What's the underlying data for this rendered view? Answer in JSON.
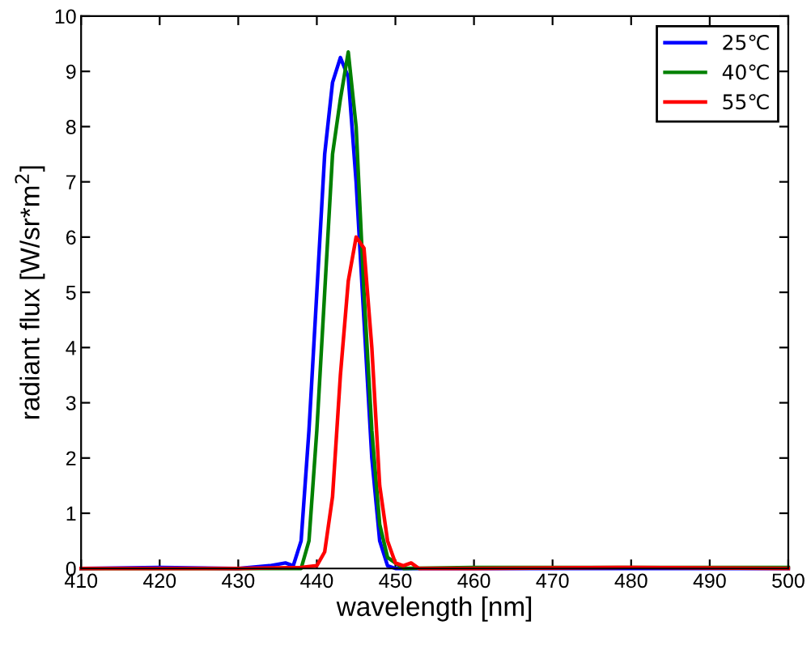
{
  "chart_data": {
    "type": "line",
    "xlabel": "wavelength [nm]",
    "ylabel": "radiant flux [W/sr*m$^{2}$]",
    "xlim": [
      410,
      500
    ],
    "xticks": [
      410,
      420,
      430,
      440,
      450,
      460,
      470,
      480,
      490,
      500
    ],
    "ylim": [
      0,
      10
    ],
    "yticks": [
      0,
      1,
      2,
      3,
      4,
      5,
      6,
      7,
      8,
      9,
      10
    ],
    "grid": false,
    "legend": "top right",
    "marker": "none",
    "line_style": "solid",
    "series": [
      {
        "name": "25℃",
        "color": "#0000ff",
        "x": [
          410,
          420,
          430,
          434,
          436,
          437,
          438,
          439,
          440,
          441,
          442,
          443,
          444,
          445,
          446,
          447,
          448,
          449,
          450,
          460,
          480,
          500
        ],
        "values": [
          0,
          0.02,
          0,
          0.05,
          0.1,
          0.05,
          0.5,
          2.5,
          5,
          7.5,
          8.8,
          9.25,
          8.9,
          7,
          4.5,
          2,
          0.5,
          0.05,
          0,
          0,
          0,
          0
        ]
      },
      {
        "name": "40℃",
        "color": "#008000",
        "x": [
          410,
          430,
          438,
          439,
          440,
          441,
          442,
          443,
          444,
          445,
          446,
          447,
          448,
          449,
          450,
          451,
          460,
          480,
          500
        ],
        "values": [
          0,
          0,
          0,
          0.5,
          2.5,
          5,
          7.5,
          8.5,
          9.35,
          8,
          5,
          2.5,
          0.8,
          0.2,
          0.1,
          0,
          0.02,
          0.02,
          0.02
        ]
      },
      {
        "name": "55℃",
        "color": "#ff0000",
        "x": [
          410,
          430,
          438,
          440,
          441,
          442,
          443,
          444,
          445,
          446,
          447,
          448,
          449,
          450,
          451,
          452,
          453,
          460,
          480,
          500
        ],
        "values": [
          0,
          0,
          0.02,
          0.05,
          0.3,
          1.3,
          3.5,
          5.2,
          6.0,
          5.8,
          4,
          1.5,
          0.5,
          0.1,
          0.05,
          0.1,
          0,
          0,
          0.02,
          0
        ]
      }
    ]
  }
}
